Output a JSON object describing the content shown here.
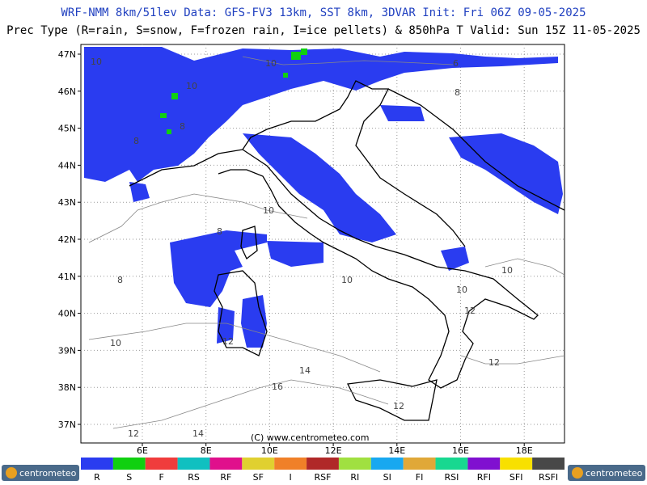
{
  "header": {
    "line1": "WRF-NMM 8km/51lev  Data: GFS-FV3 13km, SST 8km, 3DVAR  Init: Fri 06Z 09-05-2025",
    "line2": "Prec Type (R=rain, S=snow, F=frozen rain, I=ice pellets) & 850hPa T  Valid: Sun 15Z 11-05-2025"
  },
  "lat_labels": [
    "47N",
    "46N",
    "45N",
    "44N",
    "43N",
    "42N",
    "41N",
    "40N",
    "39N",
    "38N",
    "37N"
  ],
  "lon_labels": [
    "6E",
    "8E",
    "10E",
    "12E",
    "14E",
    "16E",
    "18E"
  ],
  "contour_labels": [
    "10",
    "6",
    "8",
    "10",
    "8",
    "8",
    "10",
    "8",
    "8",
    "10",
    "10",
    "10",
    "12",
    "12",
    "14",
    "16",
    "12",
    "12",
    "10",
    "10",
    "14",
    "12"
  ],
  "copyright": "(C) www.centrometeo.com",
  "legend": [
    {
      "label": "R",
      "color": "#2a3cf0"
    },
    {
      "label": "S",
      "color": "#10d010"
    },
    {
      "label": "F",
      "color": "#f03c3c"
    },
    {
      "label": "RS",
      "color": "#10c0c0"
    },
    {
      "label": "RF",
      "color": "#e0108c"
    },
    {
      "label": "SF",
      "color": "#e0d030"
    },
    {
      "label": "I",
      "color": "#f08028"
    },
    {
      "label": "RSF",
      "color": "#b02828"
    },
    {
      "label": "RI",
      "color": "#a0e040"
    },
    {
      "label": "SI",
      "color": "#18a8f0"
    },
    {
      "label": "FI",
      "color": "#e0a838"
    },
    {
      "label": "RSI",
      "color": "#18d890"
    },
    {
      "label": "RFI",
      "color": "#8010d0"
    },
    {
      "label": "SFI",
      "color": "#f8e000"
    },
    {
      "label": "RSFI",
      "color": "#484848"
    }
  ],
  "logo": {
    "left": "centrometeo",
    "right": "centrometeo"
  }
}
